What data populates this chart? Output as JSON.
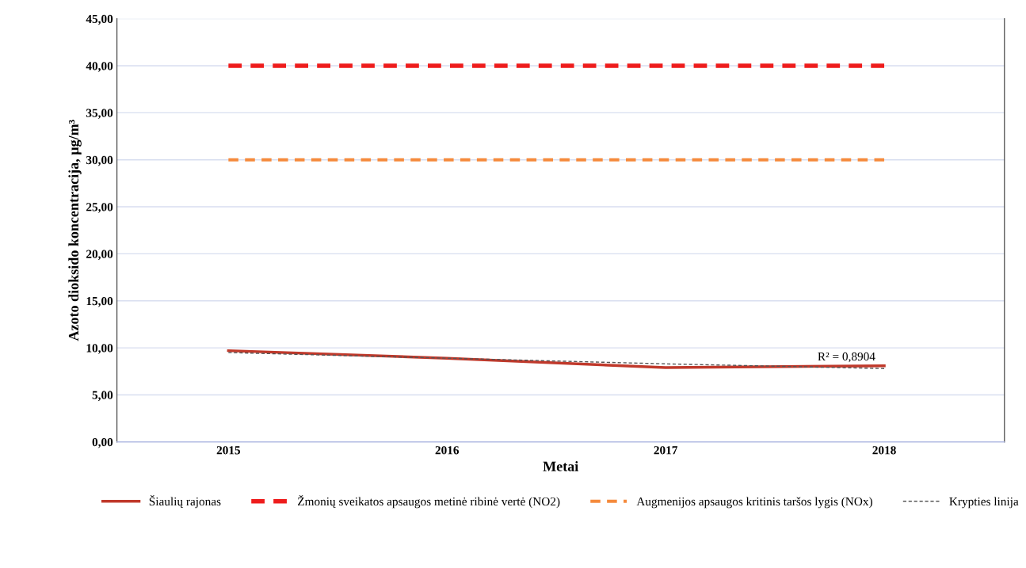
{
  "chart_data": {
    "type": "line",
    "xlabel": "Metai",
    "ylabel": "Azoto dioksido koncentracija, µg/m³",
    "categories": [
      "2015",
      "2016",
      "2017",
      "2018"
    ],
    "series": [
      {
        "name": "Šiaulių rajonas",
        "color": "#c0392b",
        "values": [
          9.7,
          8.9,
          7.9,
          8.1
        ],
        "line_style": "solid"
      },
      {
        "name": "Žmonių sveikatos apsaugos metinė ribinė vertė (NO2)",
        "color": "#ee1c1c",
        "values": [
          40,
          40,
          40,
          40
        ],
        "line_style": "dashed"
      },
      {
        "name": "Augmenijos apsaugos kritinis taršos lygis (NOx)",
        "color": "#f58a3c",
        "values": [
          30,
          30,
          30,
          30
        ],
        "line_style": "dashed"
      },
      {
        "name": "Krypties linija",
        "color": "#555555",
        "values": [
          9.5,
          8.9,
          8.3,
          7.8
        ],
        "line_style": "dashed"
      }
    ],
    "annotations": [
      {
        "text": "R² = 0,8904",
        "x": "2018",
        "y": 7.8
      }
    ],
    "ylim": [
      0,
      45
    ],
    "yticks": [
      {
        "value": 0,
        "label": "0,00"
      },
      {
        "value": 5,
        "label": "5,00"
      },
      {
        "value": 10,
        "label": "10,00"
      },
      {
        "value": 15,
        "label": "15,00"
      },
      {
        "value": 20,
        "label": "20,00"
      },
      {
        "value": 25,
        "label": "25,00"
      },
      {
        "value": 30,
        "label": "30,00"
      },
      {
        "value": 35,
        "label": "35,00"
      },
      {
        "value": 40,
        "label": "40,00"
      },
      {
        "value": 45,
        "label": "45,00"
      }
    ],
    "grid": "y",
    "legend": "bottom",
    "marker": "none"
  }
}
